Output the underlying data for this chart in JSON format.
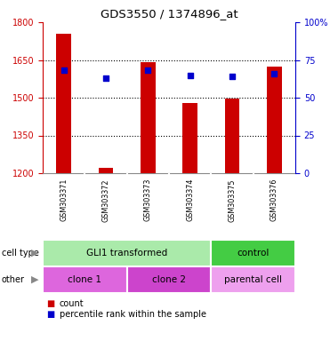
{
  "title": "GDS3550 / 1374896_at",
  "samples": [
    "GSM303371",
    "GSM303372",
    "GSM303373",
    "GSM303374",
    "GSM303375",
    "GSM303376"
  ],
  "count_values": [
    1755,
    1220,
    1640,
    1480,
    1495,
    1625
  ],
  "percentile_values": [
    68,
    63,
    68,
    65,
    64,
    66
  ],
  "ylim_left": [
    1200,
    1800
  ],
  "ylim_right": [
    0,
    100
  ],
  "yticks_left": [
    1200,
    1350,
    1500,
    1650,
    1800
  ],
  "yticks_right": [
    0,
    25,
    50,
    75,
    100
  ],
  "bar_color": "#cc0000",
  "dot_color": "#0000cc",
  "bar_width": 0.35,
  "cell_type_groups": [
    {
      "label": "GLI1 transformed",
      "span": [
        0,
        4
      ],
      "color": "#aaeaaa"
    },
    {
      "label": "control",
      "span": [
        4,
        6
      ],
      "color": "#44cc44"
    }
  ],
  "other_groups": [
    {
      "label": "clone 1",
      "span": [
        0,
        2
      ],
      "color": "#dd66dd"
    },
    {
      "label": "clone 2",
      "span": [
        2,
        4
      ],
      "color": "#cc44cc"
    },
    {
      "label": "parental cell",
      "span": [
        4,
        6
      ],
      "color": "#eea0ee"
    }
  ],
  "legend_count_label": "count",
  "legend_pct_label": "percentile rank within the sample",
  "row_label_cell_type": "cell type",
  "row_label_other": "other",
  "background_color": "#ffffff",
  "tick_label_color_left": "#cc0000",
  "tick_label_color_right": "#0000cc",
  "sample_bg_color": "#cccccc",
  "grid_dotted_color": "#000000"
}
